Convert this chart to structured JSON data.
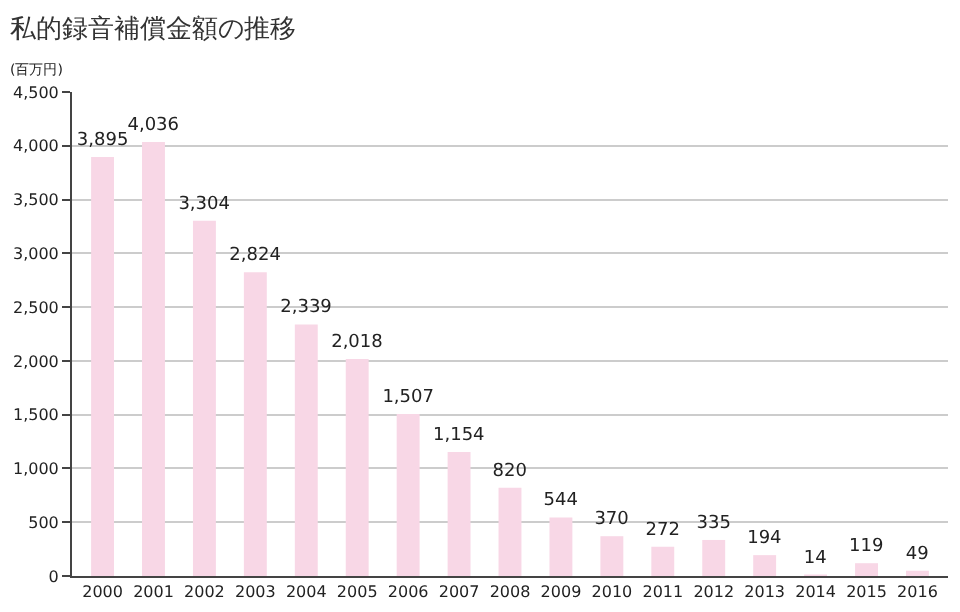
{
  "chart_data": {
    "type": "bar",
    "title": "私的録音補償金額の推移",
    "ylabel": "(百万円)",
    "categories": [
      "2000",
      "2001",
      "2002",
      "2003",
      "2004",
      "2005",
      "2006",
      "2007",
      "2008",
      "2009",
      "2010",
      "2011",
      "2012",
      "2013",
      "2014",
      "2015",
      "2016"
    ],
    "values": [
      3895,
      4036,
      3304,
      2824,
      2339,
      2018,
      1507,
      1154,
      820,
      544,
      370,
      272,
      335,
      194,
      14,
      119,
      49
    ],
    "value_labels": [
      "3,895",
      "4,036",
      "3,304",
      "2,824",
      "2,339",
      "2,018",
      "1,507",
      "1,154",
      "820",
      "544",
      "370",
      "272",
      "335",
      "194",
      "14",
      "119",
      "49"
    ],
    "color": "#f8d7e6",
    "ylim": [
      0,
      4500
    ],
    "yticks": [
      0,
      500,
      {
        "value": 1000,
        "label": "1,000"
      },
      {
        "value": 1500,
        "label": "1,500"
      },
      {
        "value": 2000,
        "label": "2,000"
      },
      {
        "value": 2500,
        "label": "2,500"
      },
      {
        "value": 3000,
        "label": "3,000"
      },
      {
        "value": 3500,
        "label": "3,500"
      },
      {
        "value": 4000,
        "label": "4,000"
      },
      {
        "value": 4500,
        "label": "4,500"
      }
    ],
    "grid": "y"
  }
}
